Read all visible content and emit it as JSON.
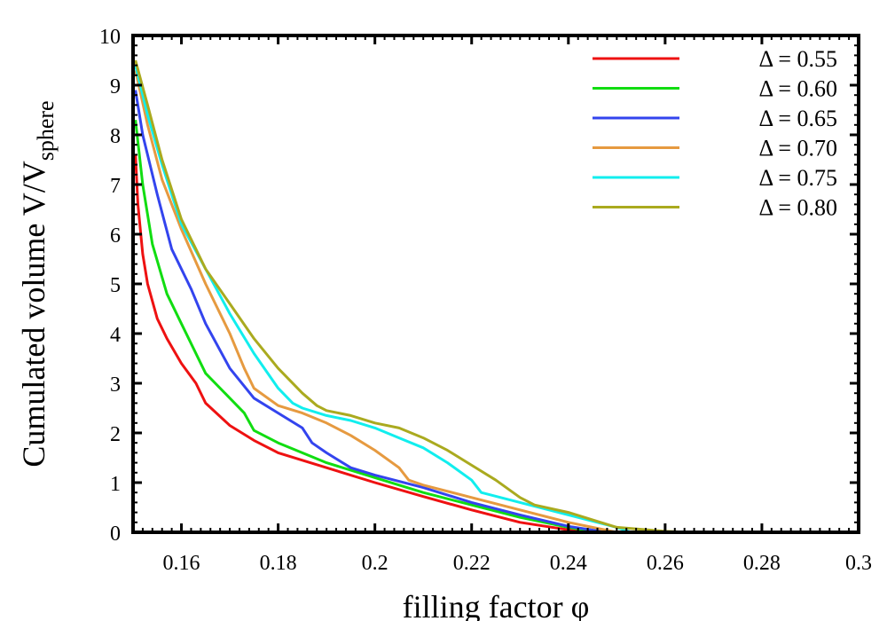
{
  "chart_data": {
    "type": "line",
    "xlabel": "filling factor φ",
    "ylabel": {
      "main": "Cumulated volume V/V",
      "subscript": "sphere"
    },
    "xlim": [
      0.15,
      0.3
    ],
    "ylim": [
      0,
      10
    ],
    "xticks": [
      0.16,
      0.18,
      0.2,
      0.22,
      0.24,
      0.26,
      0.28,
      0.3
    ],
    "xtick_labels": [
      "0.16",
      "0.18",
      "0.2",
      "0.22",
      "0.24",
      "0.26",
      "0.28",
      "0.3"
    ],
    "yticks": [
      0,
      1,
      2,
      3,
      4,
      5,
      6,
      7,
      8,
      9,
      10
    ],
    "ytick_labels": [
      "0",
      "1",
      "2",
      "3",
      "4",
      "5",
      "6",
      "7",
      "8",
      "9",
      "10"
    ],
    "grid": false,
    "legend_position": "top-right",
    "series": [
      {
        "name": "Δ = 0.55",
        "color": "#ee1111",
        "x": [
          0.1505,
          0.151,
          0.152,
          0.153,
          0.155,
          0.157,
          0.16,
          0.163,
          0.165,
          0.17,
          0.175,
          0.18,
          0.19,
          0.2,
          0.21,
          0.22,
          0.23,
          0.24,
          0.243,
          0.245
        ],
        "y": [
          7.6,
          6.6,
          5.6,
          5.0,
          4.3,
          3.9,
          3.4,
          3.0,
          2.6,
          2.15,
          1.85,
          1.6,
          1.3,
          1.0,
          0.72,
          0.45,
          0.2,
          0.05,
          0.01,
          0
        ]
      },
      {
        "name": "Δ = 0.60",
        "color": "#11dd11",
        "x": [
          0.1505,
          0.152,
          0.154,
          0.157,
          0.16,
          0.165,
          0.17,
          0.173,
          0.175,
          0.18,
          0.19,
          0.2,
          0.21,
          0.22,
          0.23,
          0.24,
          0.246
        ],
        "y": [
          8.3,
          7.0,
          5.8,
          4.8,
          4.2,
          3.2,
          2.7,
          2.4,
          2.05,
          1.8,
          1.4,
          1.1,
          0.8,
          0.55,
          0.3,
          0.1,
          0
        ]
      },
      {
        "name": "Δ = 0.65",
        "color": "#3344ee",
        "x": [
          0.1505,
          0.152,
          0.155,
          0.158,
          0.162,
          0.165,
          0.17,
          0.175,
          0.18,
          0.185,
          0.187,
          0.19,
          0.195,
          0.2,
          0.21,
          0.22,
          0.23,
          0.24,
          0.248
        ],
        "y": [
          8.9,
          8.0,
          6.8,
          5.7,
          4.9,
          4.2,
          3.3,
          2.7,
          2.4,
          2.1,
          1.8,
          1.6,
          1.3,
          1.15,
          0.9,
          0.6,
          0.35,
          0.12,
          0
        ]
      },
      {
        "name": "Δ = 0.70",
        "color": "#e69a40",
        "x": [
          0.1505,
          0.153,
          0.156,
          0.16,
          0.165,
          0.17,
          0.173,
          0.175,
          0.18,
          0.185,
          0.19,
          0.195,
          0.2,
          0.205,
          0.207,
          0.21,
          0.22,
          0.23,
          0.24,
          0.25
        ],
        "y": [
          9.3,
          8.2,
          7.1,
          6.1,
          5.0,
          4.0,
          3.3,
          2.9,
          2.55,
          2.4,
          2.2,
          1.95,
          1.65,
          1.3,
          1.05,
          0.95,
          0.7,
          0.45,
          0.2,
          0
        ]
      },
      {
        "name": "Δ = 0.75",
        "color": "#11eeee",
        "x": [
          0.1505,
          0.153,
          0.156,
          0.16,
          0.165,
          0.17,
          0.175,
          0.18,
          0.183,
          0.185,
          0.19,
          0.195,
          0.2,
          0.205,
          0.21,
          0.215,
          0.22,
          0.222,
          0.23,
          0.24,
          0.25,
          0.253
        ],
        "y": [
          9.4,
          8.4,
          7.4,
          6.2,
          5.3,
          4.4,
          3.6,
          2.9,
          2.6,
          2.5,
          2.35,
          2.25,
          2.1,
          1.9,
          1.7,
          1.4,
          1.05,
          0.8,
          0.6,
          0.35,
          0.1,
          0
        ]
      },
      {
        "name": "Δ = 0.80",
        "color": "#aaaa1f",
        "x": [
          0.1505,
          0.153,
          0.156,
          0.16,
          0.165,
          0.17,
          0.175,
          0.18,
          0.185,
          0.188,
          0.19,
          0.195,
          0.2,
          0.205,
          0.21,
          0.215,
          0.22,
          0.225,
          0.23,
          0.233,
          0.24,
          0.25,
          0.26,
          0.265
        ],
        "y": [
          9.5,
          8.6,
          7.5,
          6.3,
          5.3,
          4.6,
          3.9,
          3.3,
          2.8,
          2.55,
          2.45,
          2.35,
          2.2,
          2.1,
          1.9,
          1.65,
          1.35,
          1.05,
          0.7,
          0.55,
          0.4,
          0.1,
          0.02,
          0
        ]
      }
    ]
  }
}
